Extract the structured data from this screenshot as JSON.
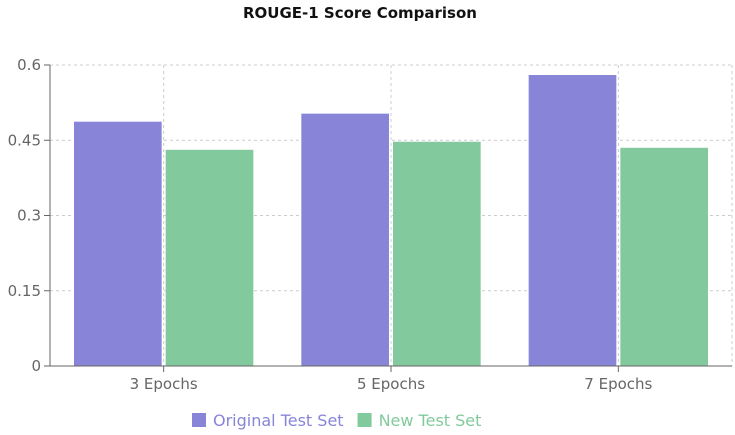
{
  "chart_data": {
    "type": "bar",
    "title": "ROUGE-1 Score Comparison",
    "categories": [
      "3 Epochs",
      "5 Epochs",
      "7 Epochs"
    ],
    "series": [
      {
        "name": "Original Test Set",
        "color": "#8884d8",
        "values": [
          0.487,
          0.503,
          0.58
        ]
      },
      {
        "name": "New Test Set",
        "color": "#82ca9d",
        "values": [
          0.431,
          0.447,
          0.435
        ]
      }
    ],
    "ylim": [
      0,
      0.6
    ],
    "yticks": [
      0,
      0.15,
      0.3,
      0.45,
      0.6
    ],
    "ytick_labels": [
      "0",
      "0.15",
      "0.3",
      "0.45",
      "0.6"
    ],
    "grid": true,
    "legend_position": "bottom"
  }
}
